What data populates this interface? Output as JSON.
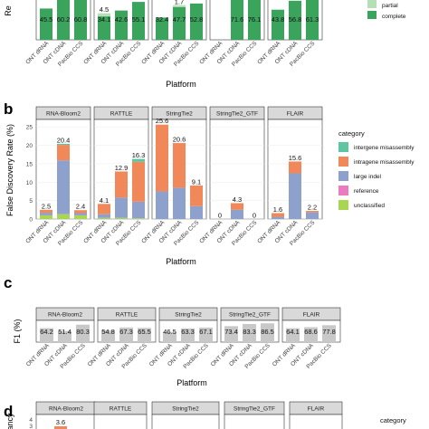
{
  "colors": {
    "complete": "#3aa35c",
    "partial": "#b7dfb5",
    "intergene_misassembly": "#5ec5a3",
    "intragene_misassembly": "#f0885a",
    "large_indel": "#8ea1cc",
    "reference": "#ec7cc0",
    "unclassified": "#a8d64e",
    "f1_bar": "#c8c8c8",
    "strip_fill": "#d9d9d9",
    "grid": "#ebebeb",
    "panel_border": "#333333"
  },
  "chart_data": [
    {
      "panel": "a",
      "type": "bar",
      "stacked": true,
      "ylabel": "Re",
      "xlabel": "Platform",
      "categories": [
        "ONT dRNA",
        "ONT cDNA",
        "PacBio CCS"
      ],
      "legend": {
        "position": "right",
        "entries": [
          "partial",
          "complete"
        ]
      },
      "facets": [
        {
          "name": "RNA-Bloom2",
          "complete": [
            45.5,
            60.2,
            60.8
          ],
          "partial": [
            null,
            null,
            null
          ]
        },
        {
          "name": "RATTLE",
          "complete": [
            34.1,
            42.6,
            55.1
          ],
          "partial": [
            4.5,
            null,
            null
          ]
        },
        {
          "name": "StringTie2",
          "complete": [
            32.4,
            47.7,
            52.8
          ],
          "partial": [
            null,
            1.7,
            null
          ]
        },
        {
          "name": "StringTie2_GTF",
          "complete": [
            null,
            71.6,
            76.1
          ],
          "partial": [
            null,
            null,
            null
          ]
        },
        {
          "name": "FLAIR",
          "complete": [
            43.8,
            56.8,
            61.3
          ],
          "partial": [
            null,
            null,
            null
          ]
        }
      ]
    },
    {
      "panel": "b",
      "type": "bar",
      "stacked": true,
      "ylabel": "False Discovery Rate (%)",
      "xlabel": "Platform",
      "ylim": [
        0,
        27
      ],
      "yticks": [
        0,
        5,
        10,
        15,
        20,
        25
      ],
      "categories": [
        "ONT dRNA",
        "ONT cDNA",
        "PacBio CCS"
      ],
      "legend": {
        "title": "category",
        "position": "right",
        "entries": [
          "intergene misassembly",
          "intragene misassembly",
          "large indel",
          "reference",
          "unclassified"
        ]
      },
      "facets": [
        {
          "name": "RNA-Bloom2",
          "totals": [
            "2.5",
            "20.4",
            "2.4"
          ],
          "stacks": [
            {
              "unclassified": 1.0,
              "large_indel": 0.7,
              "intragene_misassembly": 0.8,
              "intergene_misassembly": 0.0
            },
            {
              "unclassified": 1.3,
              "large_indel": 14.6,
              "intragene_misassembly": 4.2,
              "intergene_misassembly": 0.3
            },
            {
              "unclassified": 1.0,
              "large_indel": 0.6,
              "intragene_misassembly": 0.8,
              "intergene_misassembly": 0.0
            }
          ]
        },
        {
          "name": "RATTLE",
          "totals": [
            "4.1",
            "12.9",
            "16.3"
          ],
          "stacks": [
            {
              "unclassified": 0.3,
              "large_indel": 1.0,
              "intragene_misassembly": 2.8,
              "intergene_misassembly": 0.0
            },
            {
              "unclassified": 0.3,
              "large_indel": 5.5,
              "intragene_misassembly": 7.1,
              "intergene_misassembly": 0.0
            },
            {
              "unclassified": 0.2,
              "large_indel": 4.5,
              "intragene_misassembly": 10.8,
              "intergene_misassembly": 0.8
            }
          ]
        },
        {
          "name": "StringTie2",
          "totals": [
            "25.6",
            "20.6",
            "9.1"
          ],
          "stacks": [
            {
              "unclassified": 0.0,
              "large_indel": 7.5,
              "intragene_misassembly": 18.1,
              "intergene_misassembly": 0.0
            },
            {
              "unclassified": 0.0,
              "large_indel": 8.5,
              "intragene_misassembly": 12.1,
              "intergene_misassembly": 0.0
            },
            {
              "unclassified": 0.0,
              "large_indel": 3.5,
              "intragene_misassembly": 5.6,
              "intergene_misassembly": 0.0
            }
          ]
        },
        {
          "name": "StringTie2_GTF",
          "totals": [
            "0",
            "4.3",
            "0"
          ],
          "stacks": [
            {
              "unclassified": 0.0,
              "large_indel": 0.0,
              "intragene_misassembly": 0.0,
              "intergene_misassembly": 0.0
            },
            {
              "unclassified": 0.0,
              "large_indel": 2.5,
              "intragene_misassembly": 1.8,
              "intergene_misassembly": 0.0
            },
            {
              "unclassified": 0.0,
              "large_indel": 0.0,
              "intragene_misassembly": 0.0,
              "intergene_misassembly": 0.0
            }
          ]
        },
        {
          "name": "FLAIR",
          "totals": [
            "1.6",
            "15.6",
            "2.2"
          ],
          "stacks": [
            {
              "unclassified": 0.0,
              "large_indel": 0.6,
              "intragene_misassembly": 1.0,
              "intergene_misassembly": 0.0
            },
            {
              "unclassified": 0.0,
              "large_indel": 12.4,
              "intragene_misassembly": 3.2,
              "intergene_misassembly": 0.0
            },
            {
              "unclassified": 0.0,
              "large_indel": 1.8,
              "intragene_misassembly": 0.4,
              "intergene_misassembly": 0.0
            }
          ]
        }
      ]
    },
    {
      "panel": "c",
      "type": "bar",
      "ylabel": "F1 (%)",
      "xlabel": "Platform",
      "ylim": [
        0,
        100
      ],
      "categories": [
        "ONT dRNA",
        "ONT cDNA",
        "PacBio CCS"
      ],
      "facets": [
        {
          "name": "RNA-Bloom2",
          "values": [
            "64.2",
            "51.4",
            "80.3"
          ]
        },
        {
          "name": "RATTLE",
          "values": [
            "54.8",
            "67.3",
            "65.5"
          ]
        },
        {
          "name": "StringTie2",
          "values": [
            "46.5",
            "63.3",
            "67.1"
          ]
        },
        {
          "name": "StringTie2_GTF",
          "values": [
            "73.4",
            "83.3",
            "86.5"
          ]
        },
        {
          "name": "FLAIR",
          "values": [
            "64.1",
            "68.6",
            "77.8"
          ]
        }
      ]
    },
    {
      "panel": "d",
      "type": "bar",
      "ylabel": "ancy",
      "yticks": [
        3,
        4
      ],
      "legend": {
        "title": "category",
        "position": "right"
      },
      "facets": [
        {
          "name": "RNA-Bloom2",
          "values": [
            "3.6"
          ]
        },
        {
          "name": "RATTLE"
        },
        {
          "name": "StringTie2"
        },
        {
          "name": "StringTie2_GTF"
        },
        {
          "name": "FLAIR"
        }
      ]
    }
  ],
  "legend_a": {
    "partial": "partial",
    "complete": "complete"
  }
}
